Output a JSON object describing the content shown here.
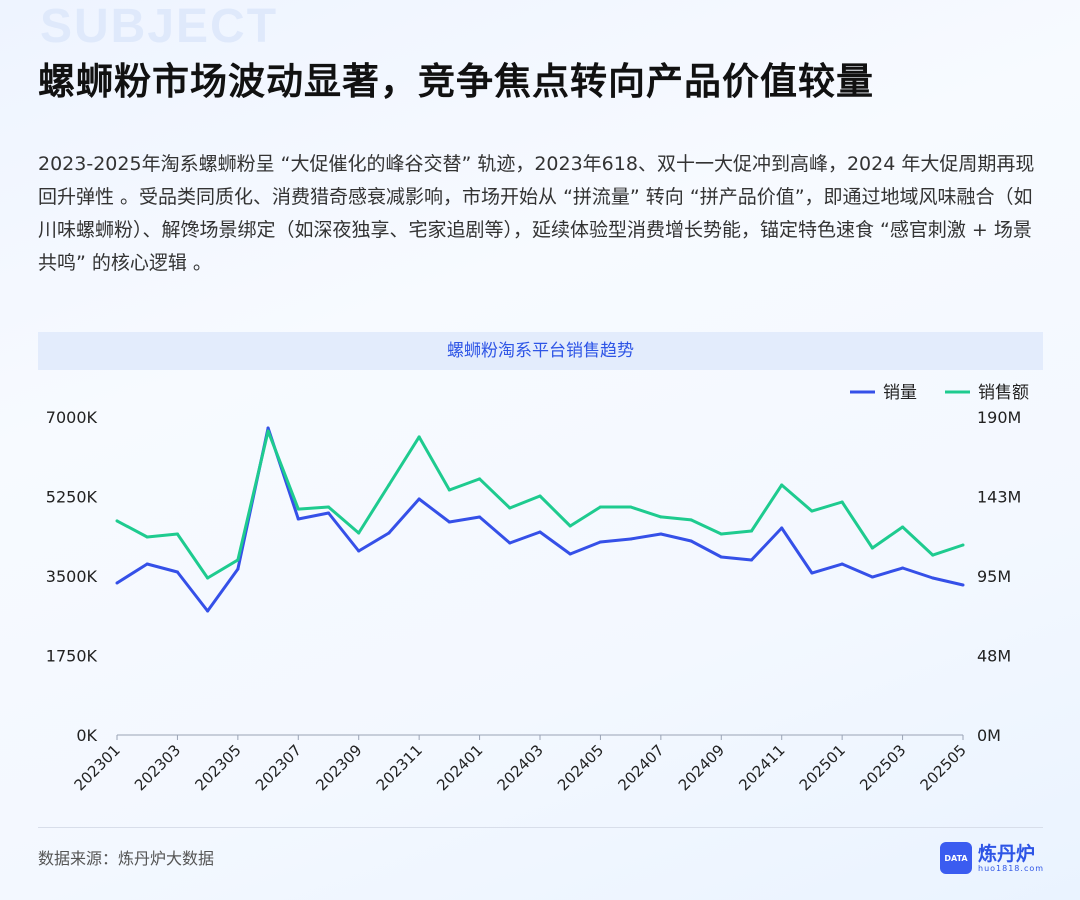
{
  "watermark": "SUBJECT",
  "title": "螺蛳粉市场波动显著，竞争焦点转向产品价值较量",
  "paragraph": "2023-2025年淘系螺蛳粉呈 “大促催化的峰谷交替” 轨迹，2023年618、双十一大促冲到高峰，2024 年大促周期再现回升弹性 。受品类同质化、消费猎奇感衰减影响，市场开始从 “拼流量” 转向 “拼产品价值”，即通过地域风味融合（如川味螺蛳粉）、解馋场景绑定（如深夜独享、宅家追剧等），延续体验型消费增长势能，锚定特色速食 “感官刺激 + 场景共鸣” 的核心逻辑 。",
  "footer": {
    "source": "数据来源：炼丹炉大数据",
    "logo_name": "炼丹炉",
    "logo_url": "huo1818.com",
    "logo_badge": "DATA"
  },
  "chart_data": {
    "type": "line",
    "title": "螺蛳粉淘系平台销售趋势",
    "x": [
      "202301",
      "202302",
      "202303",
      "202304",
      "202305",
      "202306",
      "202307",
      "202308",
      "202309",
      "202310",
      "202311",
      "202312",
      "202401",
      "202402",
      "202403",
      "202404",
      "202405",
      "202406",
      "202407",
      "202408",
      "202409",
      "202410",
      "202411",
      "202412",
      "202501",
      "202502",
      "202503",
      "202504",
      "202505"
    ],
    "x_tick_labels": [
      "202301",
      "202303",
      "202305",
      "202307",
      "202309",
      "202311",
      "202401",
      "202403",
      "202405",
      "202407",
      "202409",
      "202411",
      "202501",
      "202503",
      "202505"
    ],
    "left_axis": {
      "ylim": [
        0,
        7000
      ],
      "ticks": [
        "0K",
        "1750K",
        "3500K",
        "5250K",
        "7000K"
      ]
    },
    "right_axis": {
      "ylim": [
        0,
        190
      ],
      "ticks": [
        "0M",
        "48M",
        "95M",
        "143M",
        "190M"
      ]
    },
    "legend_placement": "top-right",
    "series": [
      {
        "name": "销量",
        "axis": "left",
        "unit": "K",
        "color": "#3550e8",
        "values": [
          3346,
          3764,
          3588,
          2730,
          3654,
          6758,
          4755,
          4887,
          4050,
          4447,
          5195,
          4689,
          4799,
          4226,
          4469,
          3984,
          4248,
          4314,
          4425,
          4270,
          3918,
          3852,
          4557,
          3566,
          3764,
          3478,
          3676,
          3456,
          3302
        ]
      },
      {
        "name": "销售额",
        "axis": "right",
        "unit": "M",
        "color": "#1ecb8f",
        "values": [
          127.9,
          118.3,
          120.1,
          93.8,
          104.6,
          181.6,
          135.0,
          136.2,
          120.7,
          149.4,
          178.1,
          146.4,
          153.0,
          135.6,
          142.8,
          124.9,
          136.2,
          136.2,
          130.3,
          128.5,
          120.1,
          121.9,
          149.4,
          133.8,
          139.2,
          111.7,
          124.3,
          107.5,
          113.5
        ]
      }
    ]
  }
}
